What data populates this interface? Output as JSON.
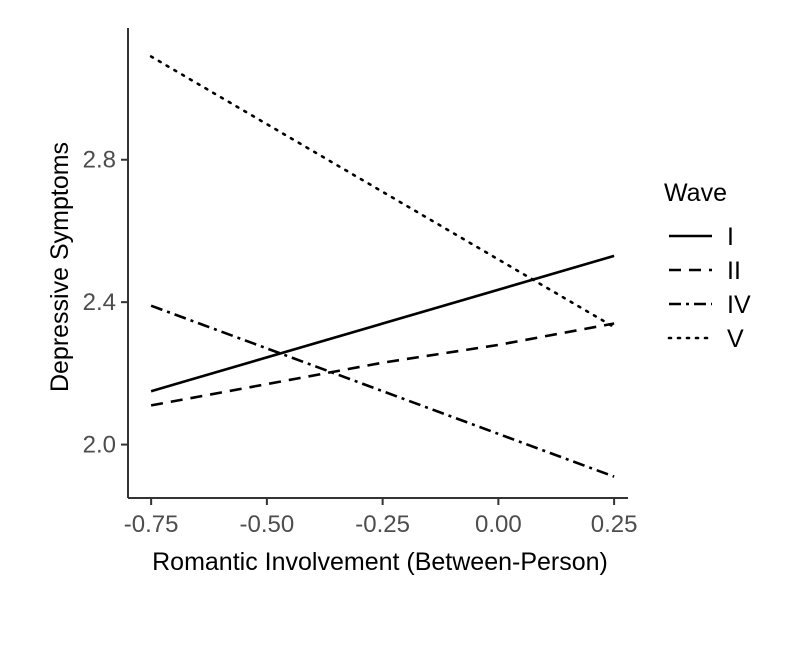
{
  "chart_data": {
    "type": "line",
    "title": "",
    "xlabel": "Romantic Involvement (Between-Person)",
    "ylabel": "Depressive Symptoms",
    "xlim": [
      -0.8,
      0.28
    ],
    "ylim": [
      1.85,
      3.17
    ],
    "xticks": [
      -0.75,
      -0.5,
      -0.25,
      0.0,
      0.25
    ],
    "xtick_labels": [
      "-0.75",
      "-0.50",
      "-0.25",
      "0.00",
      "0.25"
    ],
    "yticks": [
      2.0,
      2.4,
      2.8
    ],
    "ytick_labels": [
      "2.0",
      "2.4",
      "2.8"
    ],
    "grid": false,
    "legend": {
      "title": "Wave",
      "placement": "right"
    },
    "series": [
      {
        "name": "I",
        "dash": "solid",
        "x": [
          -0.75,
          0.25
        ],
        "y": [
          2.15,
          2.53
        ]
      },
      {
        "name": "II",
        "dash": "dashed",
        "x": [
          -0.75,
          -0.5,
          -0.25,
          0.0,
          0.25
        ],
        "y": [
          2.11,
          2.17,
          2.23,
          2.28,
          2.34
        ]
      },
      {
        "name": "IV",
        "dash": "dashdot",
        "x": [
          -0.75,
          0.25
        ],
        "y": [
          2.39,
          1.91
        ]
      },
      {
        "name": "V",
        "dash": "dotted",
        "x": [
          -0.75,
          0.25
        ],
        "y": [
          3.09,
          2.33
        ]
      }
    ]
  }
}
